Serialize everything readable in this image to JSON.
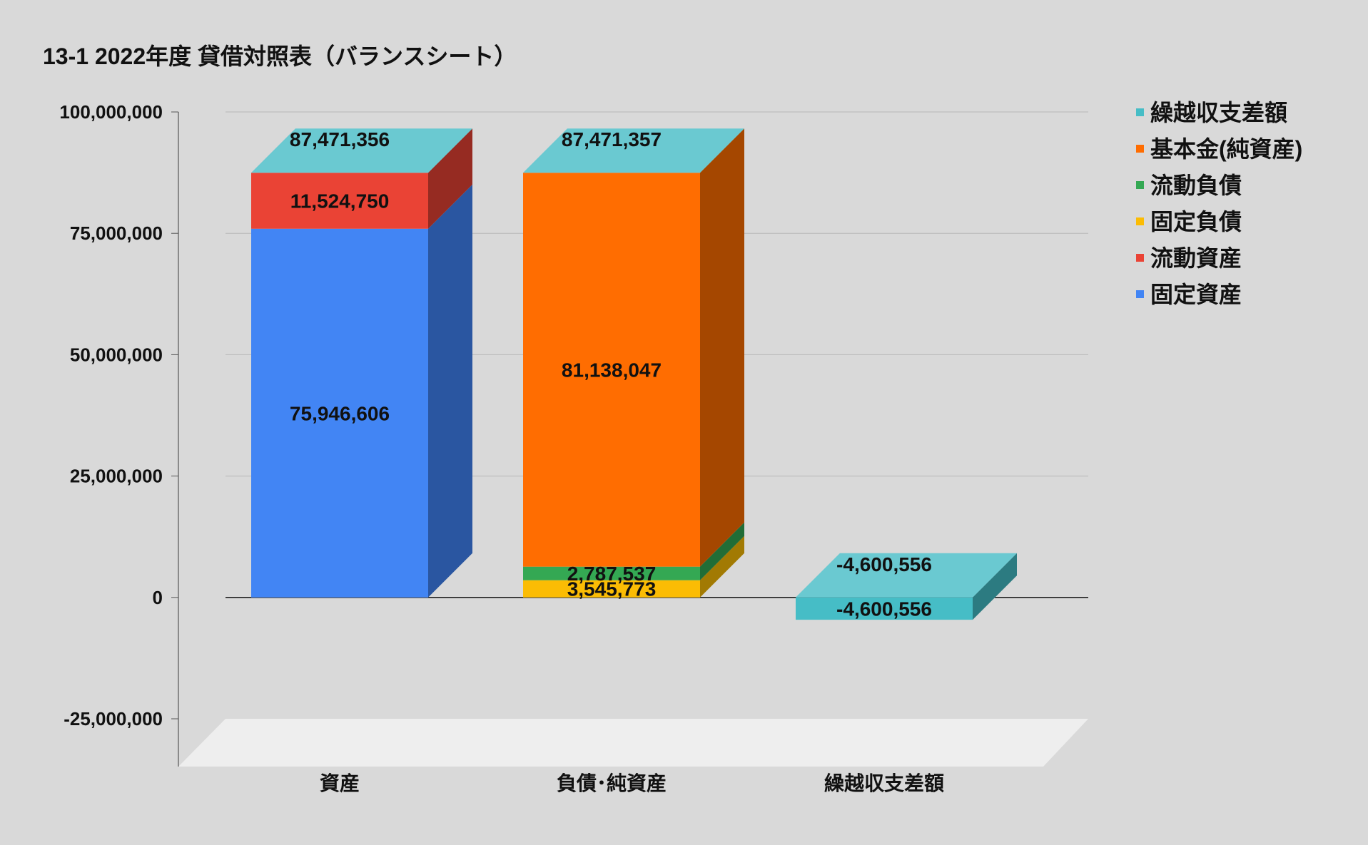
{
  "chart_data": {
    "type": "bar",
    "stacked": true,
    "style": "3d",
    "title": "13-1 2022年度 貸借対照表（バランスシート）",
    "xlabel": "",
    "ylabel": "",
    "ylim": [
      -25000000,
      100000000
    ],
    "yticks": [
      100000000,
      75000000,
      50000000,
      25000000,
      0,
      -25000000
    ],
    "ytick_labels": [
      "100,000,000",
      "75,000,000",
      "50,000,000",
      "25,000,000",
      "0",
      "-25,000,000"
    ],
    "grid": true,
    "legend_position": "right",
    "categories": [
      "資産",
      "負債･純資産",
      "繰越収支差額"
    ],
    "series": [
      {
        "name": "固定資産",
        "color": "#4285f4",
        "side_color": "#2a56a1",
        "values": [
          75946606,
          null,
          null
        ],
        "labels": [
          "75,946,606",
          "",
          ""
        ]
      },
      {
        "name": "流動資産",
        "color": "#ea4335",
        "side_color": "#962b22",
        "values": [
          11524750,
          null,
          null
        ],
        "labels": [
          "11,524,750",
          "",
          ""
        ]
      },
      {
        "name": "固定負債",
        "color": "#fbbc04",
        "side_color": "#a27a03",
        "values": [
          null,
          3545773,
          null
        ],
        "labels": [
          "",
          "3,545,773",
          ""
        ]
      },
      {
        "name": "流動負債",
        "color": "#34a853",
        "side_color": "#216d36",
        "values": [
          null,
          2787537,
          null
        ],
        "labels": [
          "",
          "2,787,537",
          ""
        ]
      },
      {
        "name": "基本金(純資産)",
        "color": "#ff6d01",
        "side_color": "#a54700",
        "values": [
          null,
          81138047,
          null
        ],
        "labels": [
          "",
          "81,138,047",
          ""
        ]
      },
      {
        "name": "繰越収支差額",
        "color": "#46bdc6",
        "side_color": "#2c7b81",
        "values": [
          null,
          null,
          -4600556
        ],
        "labels": [
          "",
          "",
          "-4,600,556"
        ]
      }
    ],
    "totals": [
      87471356,
      87471357,
      -4600556
    ],
    "total_labels": [
      "87,471,356",
      "87,471,357",
      "-4,600,556"
    ],
    "legend_order": [
      "繰越収支差額",
      "基本金(純資産)",
      "流動負債",
      "固定負債",
      "流動資産",
      "固定資産"
    ],
    "colors": {
      "background": "#d9d9d9",
      "floor": "#eeeeee",
      "top_face": "#6ac9d1",
      "grid": "#b7b7b7",
      "axis": "#555555",
      "text": "#111111"
    }
  }
}
